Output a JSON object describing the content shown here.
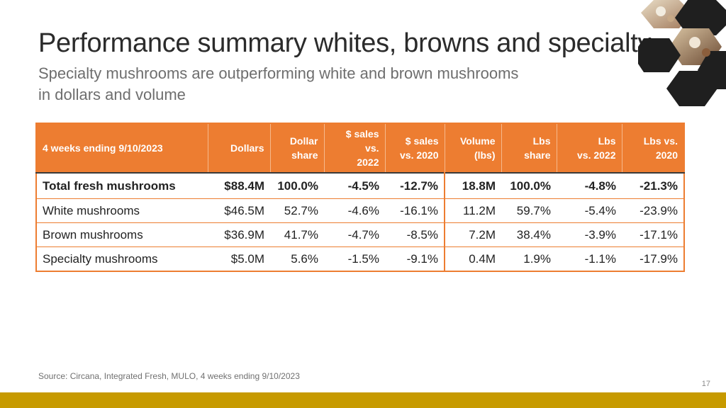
{
  "slide": {
    "title": "Performance summary whites, browns and specialty",
    "subtitle_line1": "Specialty mushrooms are outperforming white and brown mushrooms",
    "subtitle_line2": "in dollars and volume",
    "source": "Source: Circana, Integrated Fresh, MULO, 4 weeks ending 9/10/2023",
    "page_number": "17"
  },
  "colors": {
    "header_fill": "#ed7d31",
    "accent_bar": "#c79a00"
  },
  "table": {
    "headers": [
      {
        "line1": "4 weeks ending 9/10/2023",
        "line2": ""
      },
      {
        "line1": "Dollars",
        "line2": ""
      },
      {
        "line1": "Dollar",
        "line2": "share"
      },
      {
        "line1": "$ sales vs.",
        "line2": "2022"
      },
      {
        "line1": "$ sales",
        "line2": "vs. 2020"
      },
      {
        "line1": "Volume",
        "line2": "(lbs)"
      },
      {
        "line1": "Lbs",
        "line2": "share"
      },
      {
        "line1": "Lbs",
        "line2": "vs. 2022"
      },
      {
        "line1": "Lbs vs.",
        "line2": "2020"
      }
    ],
    "rows": [
      [
        "Total fresh mushrooms",
        "$88.4M",
        "100.0%",
        "-4.5%",
        "-12.7%",
        "18.8M",
        "100.0%",
        "-4.8%",
        "-21.3%"
      ],
      [
        "White mushrooms",
        "$46.5M",
        "52.7%",
        "-4.6%",
        "-16.1%",
        "11.2M",
        "59.7%",
        "-5.4%",
        "-23.9%"
      ],
      [
        "Brown mushrooms",
        "$36.9M",
        "41.7%",
        "-4.7%",
        "-8.5%",
        "7.2M",
        "38.4%",
        "-3.9%",
        "-17.1%"
      ],
      [
        "Specialty mushrooms",
        "$5.0M",
        "5.6%",
        "-1.5%",
        "-9.1%",
        "0.4M",
        "1.9%",
        "-1.1%",
        "-17.9%"
      ]
    ]
  },
  "decor": {
    "image": "mushroom-photo-hexagons"
  }
}
